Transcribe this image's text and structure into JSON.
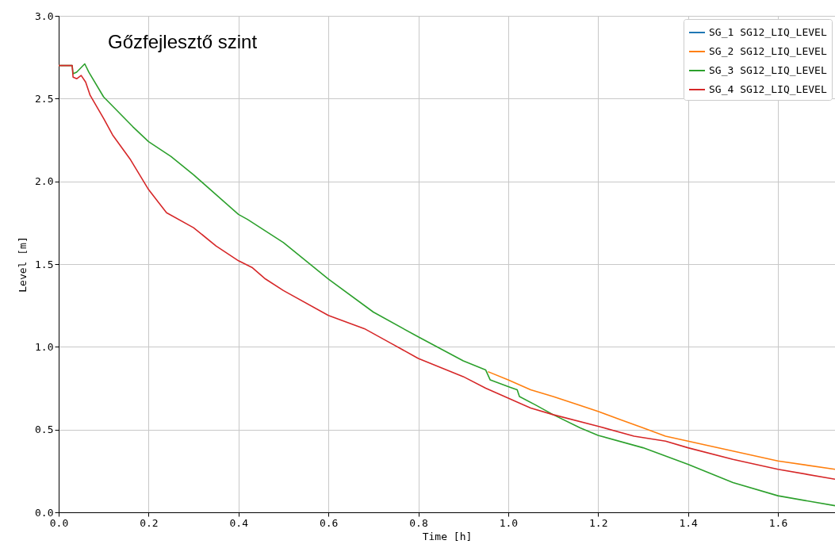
{
  "chart_data": {
    "type": "line",
    "title": "Gőzfejlesztő szint",
    "xlabel": "Time [h]",
    "ylabel": "Level [m]",
    "xlim": [
      0,
      1.727
    ],
    "ylim": [
      0,
      3.0
    ],
    "xticks": [
      {
        "value": 0,
        "label": "0.0"
      },
      0.2,
      0.4,
      0.6,
      0.8,
      {
        "value": 1,
        "label": "1.0"
      },
      1.2,
      1.4,
      1.6
    ],
    "yticks": [
      {
        "value": 0,
        "label": "0.0"
      },
      0.5,
      {
        "value": 1,
        "label": "1.0"
      },
      1.5,
      {
        "value": 2,
        "label": "2.0"
      },
      2.5,
      {
        "value": 3,
        "label": "3.0"
      }
    ],
    "grid": true,
    "legend": "top right",
    "line_style": "solid",
    "marker": "none",
    "series": [
      {
        "name": "SG_1 SG12_LIQ_LEVEL",
        "color": "#1f77b4"
      },
      {
        "name": "SG_2 SG12_LIQ_LEVEL",
        "color": "#ff7f0e",
        "x": [
          0.955,
          1.0,
          1.05,
          1.1,
          1.2,
          1.25,
          1.3,
          1.35,
          1.4,
          1.5,
          1.6,
          1.727
        ],
        "values": [
          0.85,
          0.8,
          0.74,
          0.7,
          0.61,
          0.56,
          0.51,
          0.46,
          0.43,
          0.37,
          0.31,
          0.26
        ]
      },
      {
        "name": "SG_3 SG12_LIQ_LEVEL",
        "color": "#2ca02c",
        "x": [
          0,
          0.03,
          0.032,
          0.04,
          0.058,
          0.067,
          0.1,
          0.165,
          0.2,
          0.25,
          0.3,
          0.4,
          0.42,
          0.5,
          0.6,
          0.7,
          0.8,
          0.9,
          0.95,
          0.96,
          1.0,
          1.02,
          1.025,
          1.06,
          1.1,
          1.16,
          1.2,
          1.3,
          1.4,
          1.5,
          1.6,
          1.727
        ],
        "values": [
          2.7,
          2.7,
          2.65,
          2.66,
          2.71,
          2.66,
          2.51,
          2.33,
          2.24,
          2.15,
          2.04,
          1.8,
          1.77,
          1.63,
          1.41,
          1.21,
          1.06,
          0.915,
          0.86,
          0.8,
          0.76,
          0.74,
          0.7,
          0.65,
          0.59,
          0.51,
          0.465,
          0.39,
          0.29,
          0.18,
          0.1,
          0.04
        ]
      },
      {
        "name": "SG_4 SG12_LIQ_LEVEL",
        "color": "#d62728",
        "x": [
          0,
          0.03,
          0.032,
          0.04,
          0.05,
          0.06,
          0.07,
          0.1,
          0.12,
          0.16,
          0.2,
          0.24,
          0.3,
          0.35,
          0.4,
          0.43,
          0.46,
          0.5,
          0.6,
          0.68,
          0.74,
          0.8,
          0.9,
          0.95,
          1.0,
          1.05,
          1.1,
          1.2,
          1.28,
          1.35,
          1.4,
          1.5,
          1.6,
          1.727
        ],
        "values": [
          2.7,
          2.7,
          2.63,
          2.62,
          2.64,
          2.6,
          2.52,
          2.38,
          2.28,
          2.13,
          1.95,
          1.81,
          1.72,
          1.61,
          1.52,
          1.48,
          1.41,
          1.34,
          1.19,
          1.11,
          1.02,
          0.93,
          0.82,
          0.75,
          0.69,
          0.63,
          0.59,
          0.52,
          0.46,
          0.43,
          0.39,
          0.32,
          0.26,
          0.2
        ]
      }
    ]
  }
}
